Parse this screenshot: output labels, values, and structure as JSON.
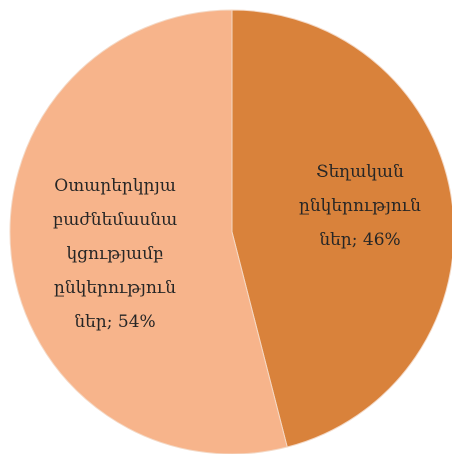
{
  "chart_data": {
    "type": "pie",
    "values": [
      46,
      54
    ],
    "value_labels": [
      [
        "Տեղական",
        "ընկերություն",
        "ներ; 46%"
      ],
      [
        "Օտարերկրյա",
        "բաժնեմասնա",
        "կցությամբ",
        "ընկերություն",
        "ներ; 54%"
      ]
    ],
    "colors": [
      "#d9823b",
      "#f7b48b"
    ]
  }
}
